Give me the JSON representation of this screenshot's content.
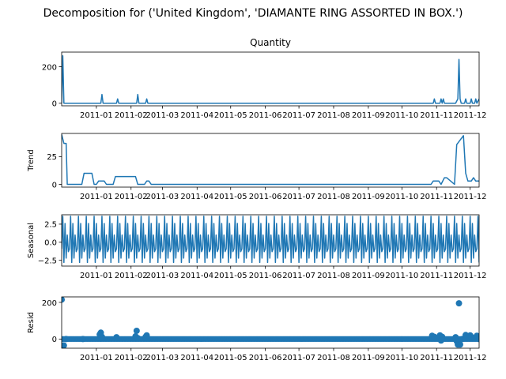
{
  "figure": {
    "suptitle": "Decomposition for ('United Kingdom', 'DIAMANTE RING ASSORTED IN BOX.')"
  },
  "chart_data": [
    {
      "type": "line",
      "title": "Quantity",
      "ylabel": "",
      "xlim": [
        "2010-12-01",
        "2011-12-09"
      ],
      "ylim": [
        -14,
        280
      ],
      "yticks": [
        0,
        200
      ],
      "xticks": [
        "2011-01",
        "2011-02",
        "2011-03",
        "2011-04",
        "2011-05",
        "2011-06",
        "2011-07",
        "2011-08",
        "2011-09",
        "2011-10",
        "2011-11",
        "2011-12"
      ],
      "xtick_dates": [
        "2011-01-01",
        "2011-02-01",
        "2011-03-01",
        "2011-04-01",
        "2011-05-01",
        "2011-06-01",
        "2011-07-01",
        "2011-08-01",
        "2011-09-01",
        "2011-10-01",
        "2011-11-01",
        "2011-12-01"
      ],
      "color": "#1f77b4",
      "x": [
        "2010-12-01",
        "2010-12-02",
        "2010-12-03",
        "2010-12-04",
        "2011-01-05",
        "2011-01-06",
        "2011-01-07",
        "2011-01-08",
        "2011-01-19",
        "2011-01-20",
        "2011-01-21",
        "2011-02-06",
        "2011-02-07",
        "2011-02-08",
        "2011-02-14",
        "2011-02-15",
        "2011-02-16",
        "2011-10-29",
        "2011-10-30",
        "2011-10-31",
        "2011-11-04",
        "2011-11-05",
        "2011-11-06",
        "2011-11-07",
        "2011-11-08",
        "2011-11-18",
        "2011-11-20",
        "2011-11-21",
        "2011-11-22",
        "2011-11-23",
        "2011-11-24",
        "2011-11-26",
        "2011-11-27",
        "2011-11-28",
        "2011-12-01",
        "2011-12-02",
        "2011-12-03",
        "2011-12-05",
        "2011-12-06",
        "2011-12-07",
        "2011-12-09"
      ],
      "y": [
        0,
        260,
        0,
        0,
        0,
        48,
        0,
        0,
        0,
        24,
        0,
        0,
        48,
        0,
        0,
        24,
        0,
        0,
        24,
        0,
        0,
        24,
        0,
        24,
        0,
        0,
        24,
        240,
        24,
        0,
        0,
        0,
        24,
        0,
        0,
        24,
        0,
        0,
        24,
        0,
        24
      ]
    },
    {
      "type": "line",
      "title": "",
      "ylabel": "Trend",
      "xlim": [
        "2010-12-01",
        "2011-12-09"
      ],
      "ylim": [
        -2.5,
        46
      ],
      "yticks": [
        0,
        25
      ],
      "xticks": [
        "2011-01",
        "2011-02",
        "2011-03",
        "2011-04",
        "2011-05",
        "2011-06",
        "2011-07",
        "2011-08",
        "2011-09",
        "2011-10",
        "2011-11",
        "2011-12"
      ],
      "xtick_dates": [
        "2011-01-01",
        "2011-02-01",
        "2011-03-01",
        "2011-04-01",
        "2011-05-01",
        "2011-06-01",
        "2011-07-01",
        "2011-08-01",
        "2011-09-01",
        "2011-10-01",
        "2011-11-01",
        "2011-12-01"
      ],
      "color": "#1f77b4",
      "x": [
        "2010-12-01",
        "2010-12-03",
        "2010-12-05",
        "2010-12-06",
        "2010-12-19",
        "2010-12-21",
        "2010-12-28",
        "2010-12-30",
        "2011-01-01",
        "2011-01-03",
        "2011-01-08",
        "2011-01-10",
        "2011-01-16",
        "2011-01-18",
        "2011-02-05",
        "2011-02-07",
        "2011-02-13",
        "2011-02-15",
        "2011-02-17",
        "2011-02-19",
        "2011-02-21",
        "2011-10-27",
        "2011-10-29",
        "2011-11-03",
        "2011-11-05",
        "2011-11-08",
        "2011-11-10",
        "2011-11-17",
        "2011-11-19",
        "2011-11-25",
        "2011-11-27",
        "2011-11-29",
        "2011-12-02",
        "2011-12-04",
        "2011-12-06",
        "2011-12-09"
      ],
      "y": [
        45,
        37,
        37,
        0,
        0,
        10,
        10,
        0,
        0,
        3,
        3,
        0,
        0,
        7,
        7,
        0,
        0,
        3,
        3,
        0,
        0,
        0,
        3,
        3,
        0,
        6,
        6,
        0,
        36,
        44,
        10,
        3,
        3,
        6,
        3,
        3
      ]
    },
    {
      "type": "line",
      "title": "",
      "ylabel": "Seasonal",
      "xlim": [
        "2010-12-01",
        "2011-12-09"
      ],
      "ylim": [
        -3.3,
        3.8
      ],
      "yticks": [
        -2.5,
        0.0,
        2.5
      ],
      "ytick_labels": [
        "−2.5",
        "0.0",
        "2.5"
      ],
      "xticks": [
        "2011-01",
        "2011-02",
        "2011-03",
        "2011-04",
        "2011-05",
        "2011-06",
        "2011-07",
        "2011-08",
        "2011-09",
        "2011-10",
        "2011-11",
        "2011-12"
      ],
      "xtick_dates": [
        "2011-01-01",
        "2011-02-01",
        "2011-03-01",
        "2011-04-01",
        "2011-05-01",
        "2011-06-01",
        "2011-07-01",
        "2011-08-01",
        "2011-09-01",
        "2011-10-01",
        "2011-11-01",
        "2011-12-01"
      ],
      "color": "#1f77b4",
      "period_days": 7,
      "pattern": [
        3.6,
        -2.8,
        2.6,
        -2.2,
        1.0,
        -1.3,
        -0.9
      ]
    },
    {
      "type": "scatter",
      "title": "",
      "ylabel": "Resid",
      "xlim": [
        "2010-12-01",
        "2011-12-09"
      ],
      "ylim": [
        -50,
        230
      ],
      "yticks": [
        0,
        200
      ],
      "xticks": [
        "2011-01",
        "2011-02",
        "2011-03",
        "2011-04",
        "2011-05",
        "2011-06",
        "2011-07",
        "2011-08",
        "2011-09",
        "2011-10",
        "2011-11",
        "2011-12"
      ],
      "xtick_dates": [
        "2011-01-01",
        "2011-02-01",
        "2011-03-01",
        "2011-04-01",
        "2011-05-01",
        "2011-06-01",
        "2011-07-01",
        "2011-08-01",
        "2011-09-01",
        "2011-10-01",
        "2011-11-01",
        "2011-12-01"
      ],
      "color": "#1f77b4",
      "x": [
        "2010-12-01",
        "2010-12-02",
        "2010-12-03",
        "2010-12-05",
        "2010-12-20",
        "2011-01-04",
        "2011-01-05",
        "2011-01-06",
        "2011-01-19",
        "2011-02-05",
        "2011-02-06",
        "2011-02-07",
        "2011-02-14",
        "2011-02-15",
        "2011-10-28",
        "2011-10-30",
        "2011-11-04",
        "2011-11-05",
        "2011-11-06",
        "2011-11-18",
        "2011-11-19",
        "2011-11-20",
        "2011-11-21",
        "2011-11-22",
        "2011-11-24",
        "2011-11-26",
        "2011-11-27",
        "2011-11-30",
        "2011-12-01",
        "2011-12-02",
        "2011-12-05",
        "2011-12-07",
        "2011-12-09"
      ],
      "y": [
        215,
        -35,
        -35,
        0,
        0,
        25,
        35,
        12,
        10,
        15,
        45,
        5,
        12,
        20,
        18,
        12,
        20,
        -8,
        12,
        10,
        -12,
        -30,
        195,
        -30,
        0,
        5,
        22,
        5,
        20,
        12,
        5,
        18,
        0
      ]
    }
  ]
}
